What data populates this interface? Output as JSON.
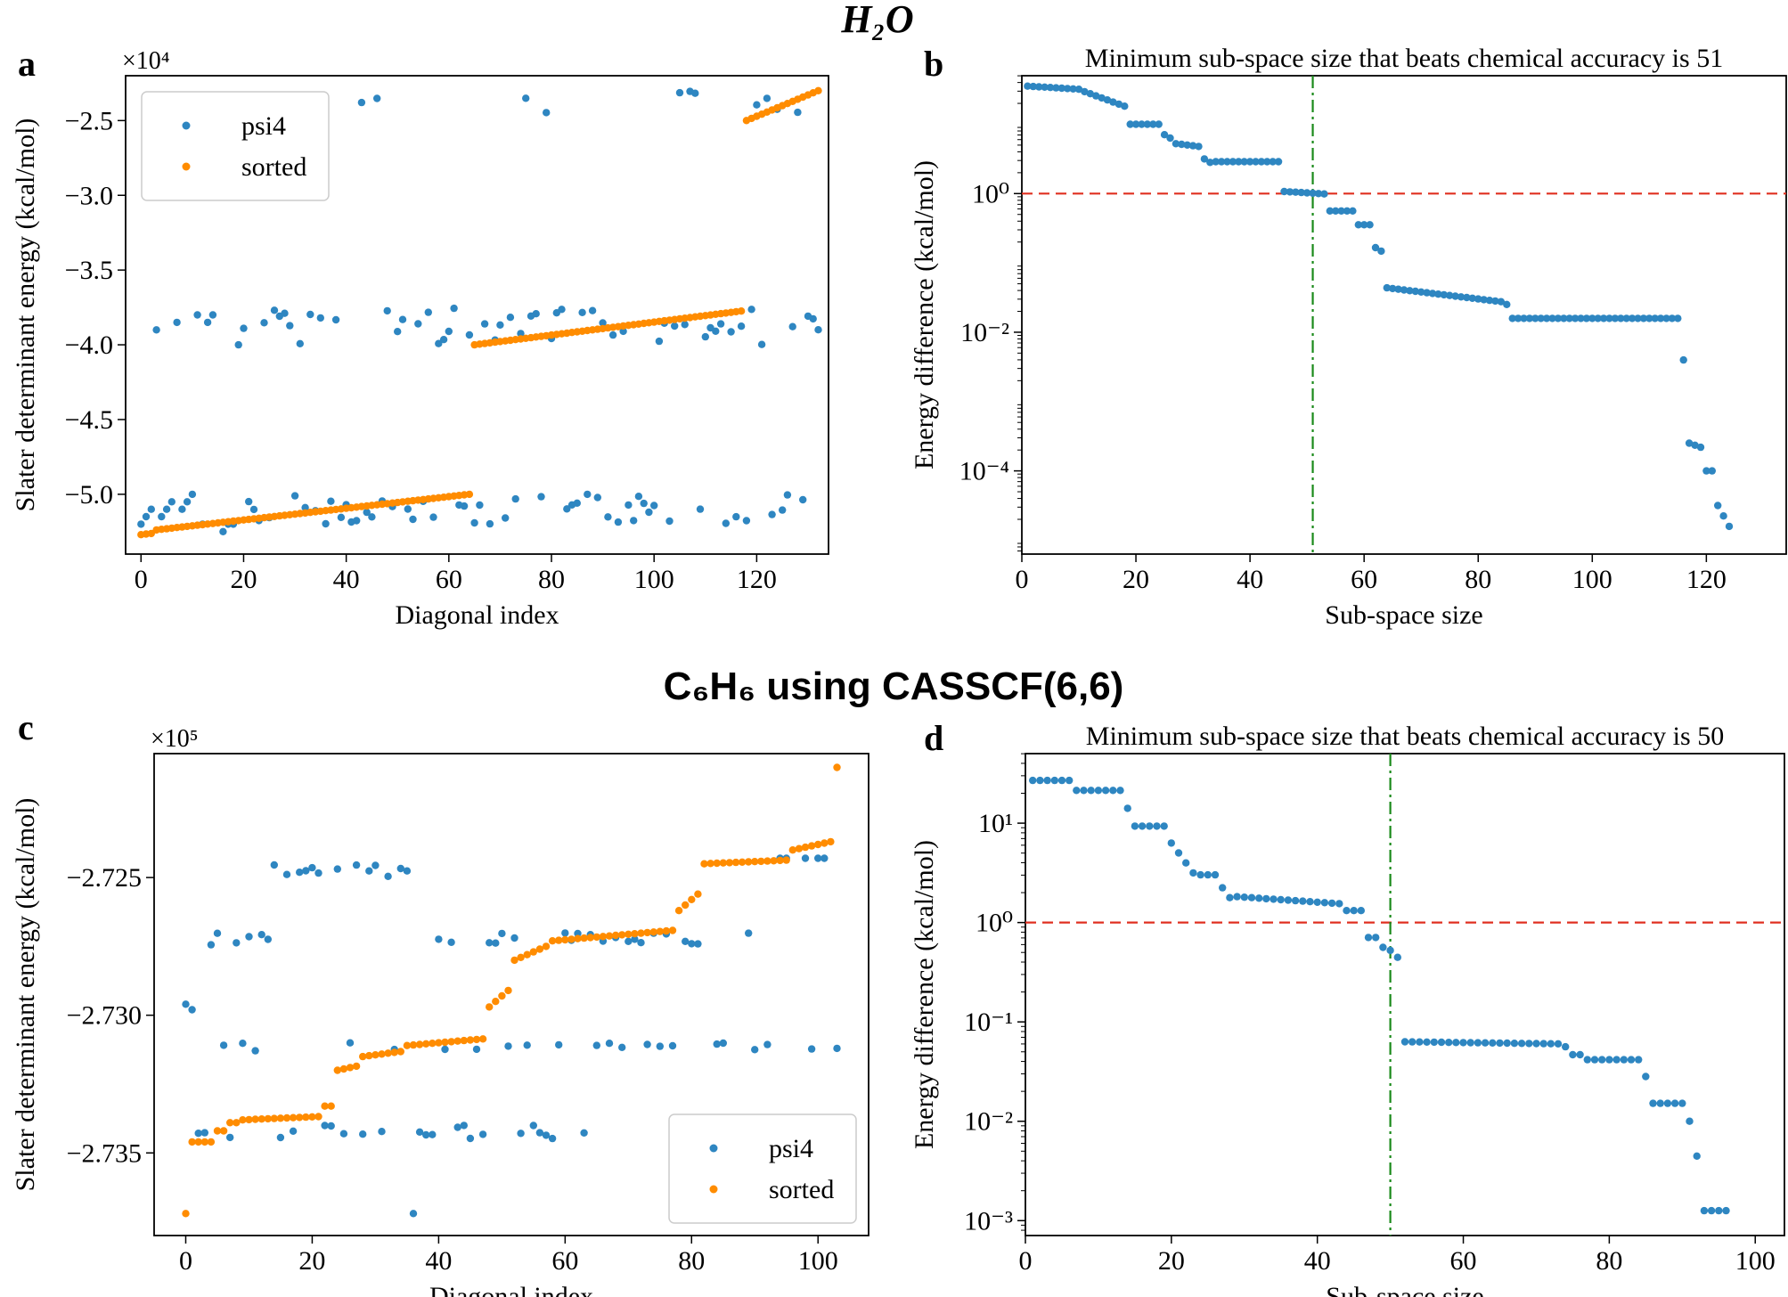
{
  "headers": [
    {
      "id": "top",
      "text": "H₂O"
    },
    {
      "id": "bottom",
      "text": "C₆H₆ using CASSCF(6,6)"
    }
  ],
  "chart_data": [
    {
      "id": "a",
      "panel_letter": "a",
      "type": "scatter",
      "title": "",
      "xlabel": "Diagonal index",
      "ylabel": "Slater determinant energy (kcal/mol)",
      "offset_text": "×10⁴",
      "xlim": [
        -3,
        134
      ],
      "ylim": [
        -5.4,
        -2.2
      ],
      "xticks": [
        0,
        20,
        40,
        60,
        80,
        100,
        120
      ],
      "yticks": [
        -5.0,
        -4.5,
        -4.0,
        -3.5,
        -3.0,
        -2.5
      ],
      "ytick_labels": [
        "−5.0",
        "−4.5",
        "−4.0",
        "−3.5",
        "−3.0",
        "−2.5"
      ],
      "legend": {
        "position": "upper-left",
        "entries": [
          "psi4",
          "sorted"
        ]
      },
      "series": [
        {
          "name": "psi4",
          "color": "#2e86c1",
          "pattern": "h2o_psi4"
        },
        {
          "name": "sorted",
          "color": "#ff8c00",
          "pattern": "h2o_sorted"
        }
      ],
      "n_points": 133
    },
    {
      "id": "b",
      "panel_letter": "b",
      "type": "scatter",
      "scale": "log",
      "title": "Minimum sub-space size that beats chemical accuracy is 51",
      "xlabel": "Sub-space size",
      "ylabel": "Energy difference (kcal/mol)",
      "xlim": [
        0,
        134
      ],
      "ylim_log10": [
        -5.2,
        1.7
      ],
      "xticks": [
        0,
        20,
        40,
        60,
        80,
        100,
        120
      ],
      "yticks_log10": [
        -4,
        -2,
        0
      ],
      "ytick_labels": [
        "10⁻⁴",
        "10⁻²",
        "10⁰"
      ],
      "threshold": 1.0,
      "threshold_color": "#e03020",
      "vline_x": 51,
      "vline_color": "#1a8a1a",
      "series": [
        {
          "name": "energy difference",
          "color": "#2e86c1",
          "pattern": "h2o_diff"
        }
      ],
      "n_points": 133
    },
    {
      "id": "c",
      "panel_letter": "c",
      "type": "scatter",
      "title": "",
      "xlabel": "Diagonal index",
      "ylabel": "Slater determinant energy (kcal/mol)",
      "offset_text": "×10⁵",
      "xlim": [
        -5,
        108
      ],
      "ylim": [
        -2.738,
        -2.7205
      ],
      "xticks": [
        0,
        20,
        40,
        60,
        80,
        100
      ],
      "yticks": [
        -2.735,
        -2.73,
        -2.725
      ],
      "ytick_labels": [
        "−2.735",
        "−2.730",
        "−2.725"
      ],
      "legend": {
        "position": "lower-right",
        "entries": [
          "psi4",
          "sorted"
        ]
      },
      "series": [
        {
          "name": "psi4",
          "color": "#2e86c1",
          "pattern": "c6h6_psi4"
        },
        {
          "name": "sorted",
          "color": "#ff8c00",
          "pattern": "c6h6_sorted"
        }
      ],
      "n_points": 104
    },
    {
      "id": "d",
      "panel_letter": "d",
      "type": "scatter",
      "scale": "log",
      "title": "Minimum sub-space size that beats chemical accuracy is 50",
      "xlabel": "Sub-space size",
      "ylabel": "Energy difference (kcal/mol)",
      "xlim": [
        0,
        104
      ],
      "ylim_log10": [
        -3.15,
        1.7
      ],
      "xticks": [
        0,
        20,
        40,
        60,
        80,
        100
      ],
      "yticks_log10": [
        -3,
        -2,
        -1,
        0,
        1
      ],
      "ytick_labels": [
        "10⁻³",
        "10⁻²",
        "10⁻¹",
        "10⁰",
        "10¹"
      ],
      "threshold": 1.0,
      "threshold_color": "#e03020",
      "vline_x": 50,
      "vline_color": "#1a8a1a",
      "series": [
        {
          "name": "energy difference",
          "color": "#2e86c1",
          "pattern": "c6h6_diff"
        }
      ],
      "n_points": 104
    }
  ]
}
